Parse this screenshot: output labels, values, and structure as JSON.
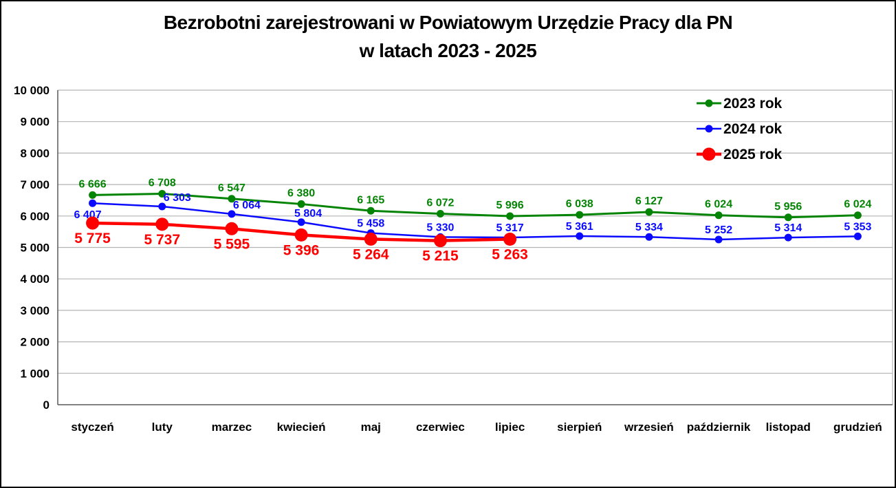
{
  "title": {
    "line1": "Bezrobotni zarejestrowani w Powiatowym Urzędzie Pracy dla PN",
    "line2": "w latach 2023 - 2025"
  },
  "chart_data": {
    "type": "line",
    "title": "Bezrobotni zarejestrowani w Powiatowym Urzędzie Pracy dla PN w latach 2023 - 2025",
    "categories": [
      "styczeń",
      "luty",
      "marzec",
      "kwiecień",
      "maj",
      "czerwiec",
      "lipiec",
      "sierpień",
      "wrzesień",
      "październik",
      "listopad",
      "grudzień"
    ],
    "series": [
      {
        "name": "2023 rok",
        "color": "#048404",
        "line_width": 3,
        "marker_radius": 5.5,
        "label_size": 16,
        "values": [
          6666,
          6708,
          6547,
          6380,
          6165,
          6072,
          5996,
          6038,
          6127,
          6024,
          5956,
          6024
        ]
      },
      {
        "name": "2024 rok",
        "color": "#0a0aff",
        "line_width": 2.5,
        "marker_radius": 5.5,
        "label_size": 16,
        "values": [
          6407,
          6303,
          6064,
          5804,
          5458,
          5330,
          5317,
          5361,
          5334,
          5252,
          5314,
          5353
        ]
      },
      {
        "name": "2025 rok",
        "color": "#ff0000",
        "line_width": 4.5,
        "marker_radius": 9.5,
        "label_size": 21,
        "values": [
          5775,
          5737,
          5595,
          5396,
          5264,
          5215,
          5263
        ]
      }
    ],
    "ylim": [
      0,
      10000
    ],
    "ytick_step": 1000,
    "ytick_labels": [
      "0",
      "1 000",
      "2 000",
      "3 000",
      "4 000",
      "5 000",
      "6 000",
      "7 000",
      "8 000",
      "9 000",
      "10 000"
    ],
    "grid": true,
    "data_labels": true,
    "legend_position": "top-right",
    "grid_color": "#b3b3b3",
    "axis_color": "#595959",
    "axis_text_color": "#000000"
  }
}
